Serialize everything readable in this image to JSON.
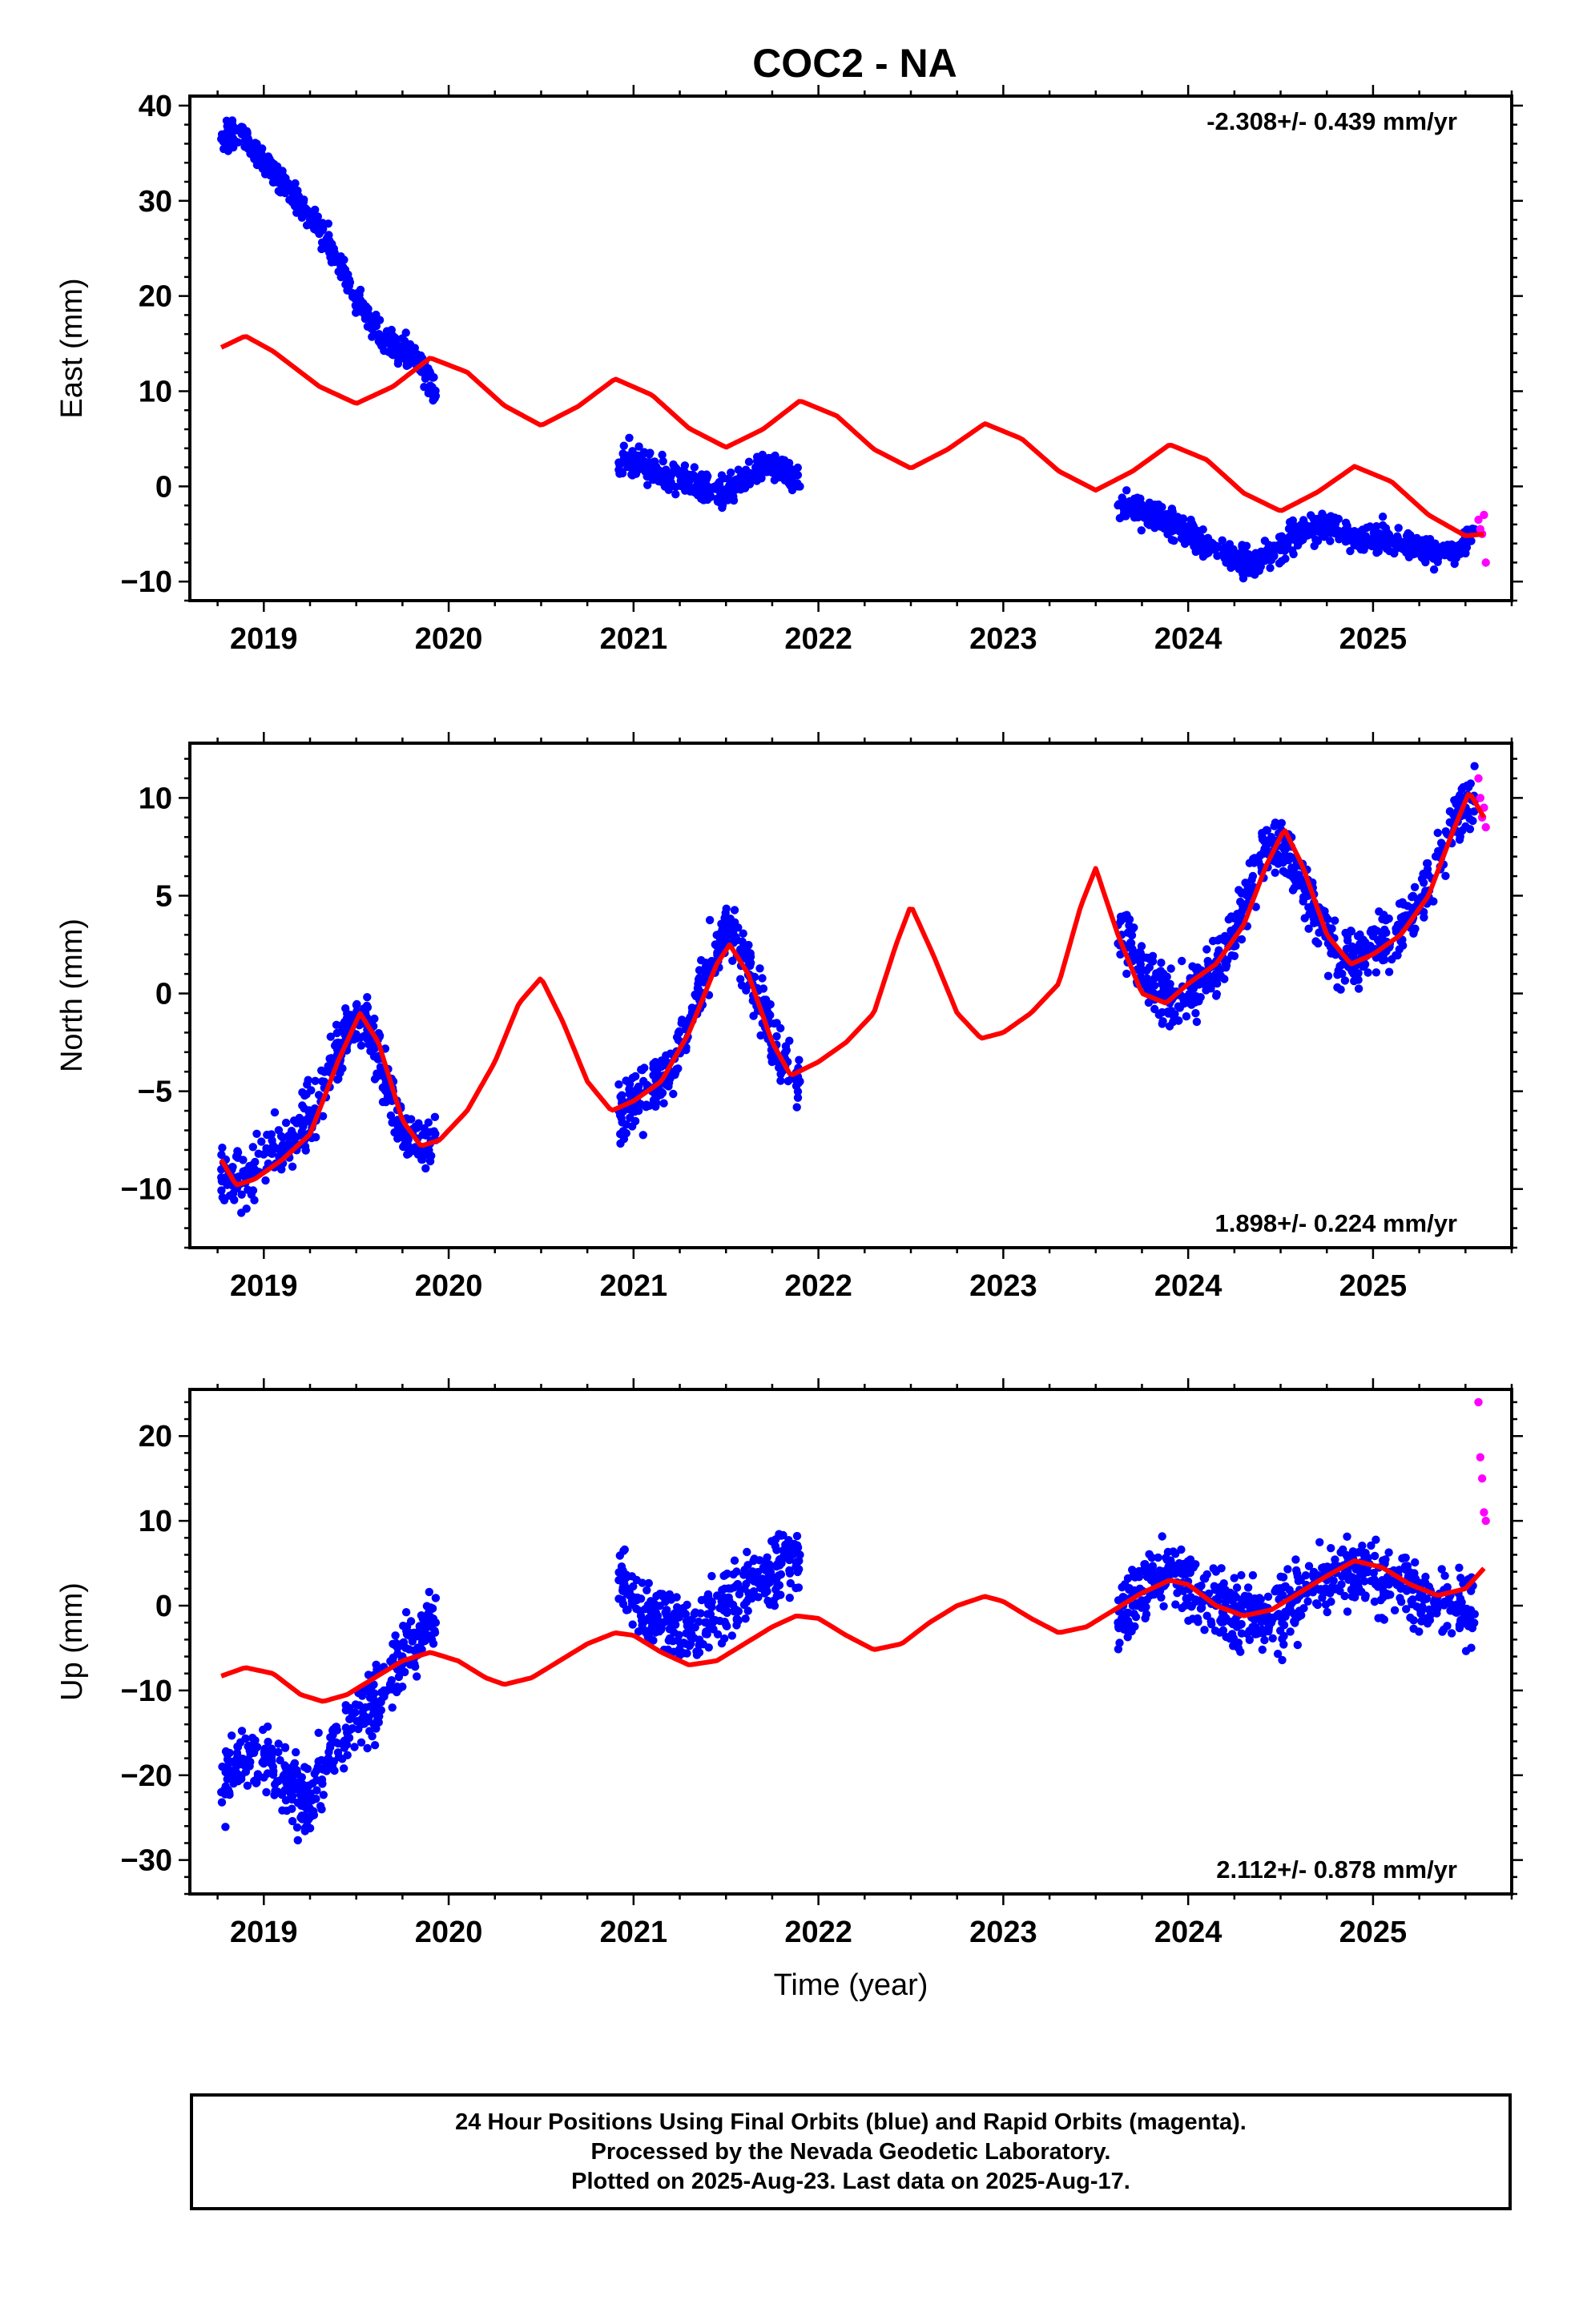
{
  "title": "COC2 - NA",
  "footer": {
    "line1": "24 Hour Positions Using Final Orbits (blue) and Rapid Orbits (magenta).",
    "line2": "Processed by the Nevada Geodetic Laboratory.",
    "line3": "Plotted on 2025-Aug-23. Last data on 2025-Aug-17."
  },
  "colors": {
    "final_orbits": "#0000ff",
    "rapid_orbits": "#ff00ff",
    "model_fit": "#ff0000",
    "axes": "#000000"
  },
  "chart_data": [
    {
      "type": "scatter",
      "panel": "east",
      "ylabel": "East (mm)",
      "xlabel": "",
      "rate_label": "-2.308+/- 0.439 mm/yr",
      "rate_position": "top-right",
      "xlim": [
        2018.6,
        2025.75
      ],
      "ylim": [
        -12,
        41
      ],
      "x_ticks": [
        2019,
        2020,
        2021,
        2022,
        2023,
        2024,
        2025
      ],
      "y_ticks": [
        -10,
        0,
        10,
        20,
        30,
        40
      ],
      "grid": false,
      "series": [
        {
          "name": "Final Orbits",
          "marker": "dot",
          "segments": [
            {
              "x": [
                2018.77,
                2018.85,
                2018.95,
                2019.05,
                2019.15,
                2019.25,
                2019.35,
                2019.45,
                2019.55,
                2019.65,
                2019.75,
                2019.85,
                2019.93
              ],
              "y": [
                36.5,
                37.5,
                35.5,
                33.0,
                31.0,
                28.0,
                25.5,
                21.5,
                18.0,
                15.5,
                14.5,
                13.0,
                9.5
              ]
            },
            {
              "x": [
                2020.92,
                2021.0,
                2021.1,
                2021.2,
                2021.3,
                2021.4,
                2021.5,
                2021.6,
                2021.7,
                2021.8,
                2021.9
              ],
              "y": [
                2.5,
                3.0,
                2.0,
                1.0,
                0.5,
                0.0,
                -0.5,
                0.5,
                2.0,
                2.0,
                0.0
              ]
            },
            {
              "x": [
                2023.62,
                2023.7,
                2023.8,
                2023.9,
                2024.05,
                2024.15,
                2024.25,
                2024.35,
                2024.45,
                2024.55,
                2024.65,
                2024.75,
                2024.85,
                2024.95,
                2025.05,
                2025.15,
                2025.25,
                2025.35,
                2025.45,
                2025.55
              ],
              "y": [
                -2.0,
                -2.5,
                -3.0,
                -4.0,
                -5.5,
                -6.5,
                -7.5,
                -8.0,
                -7.0,
                -5.5,
                -4.5,
                -4.0,
                -5.0,
                -5.5,
                -5.5,
                -6.0,
                -6.5,
                -7.0,
                -7.0,
                -4.5
              ]
            }
          ]
        },
        {
          "name": "Rapid Orbits",
          "marker": "dot",
          "x": [
            2025.57,
            2025.58,
            2025.59,
            2025.6,
            2025.61
          ],
          "y": [
            -3.5,
            -4.5,
            -5.0,
            -3.0,
            -8.0
          ]
        },
        {
          "name": "Model",
          "type": "line",
          "x": [
            2018.77,
            2018.9,
            2019.05,
            2019.3,
            2019.5,
            2019.7,
            2019.9,
            2020.1,
            2020.3,
            2020.5,
            2020.7,
            2020.9,
            2021.1,
            2021.3,
            2021.5,
            2021.7,
            2021.9,
            2022.1,
            2022.3,
            2022.5,
            2022.7,
            2022.9,
            2023.1,
            2023.3,
            2023.5,
            2023.7,
            2023.9,
            2024.1,
            2024.3,
            2024.5,
            2024.7,
            2024.9,
            2025.1,
            2025.3,
            2025.5,
            2025.6
          ],
          "y": [
            14.6,
            15.8,
            14.2,
            10.5,
            8.7,
            10.5,
            13.5,
            12.0,
            8.5,
            6.4,
            8.4,
            11.3,
            9.6,
            6.1,
            4.1,
            6.0,
            9.0,
            7.4,
            3.9,
            1.9,
            3.9,
            6.6,
            5.0,
            1.6,
            -0.4,
            1.6,
            4.4,
            2.8,
            -0.7,
            -2.6,
            -0.6,
            2.1,
            0.5,
            -3.0,
            -5.2,
            -5.0
          ]
        }
      ]
    },
    {
      "type": "scatter",
      "panel": "north",
      "ylabel": "North (mm)",
      "xlabel": "",
      "rate_label": "1.898+/- 0.224 mm/yr",
      "rate_position": "bottom-right",
      "xlim": [
        2018.6,
        2025.75
      ],
      "ylim": [
        -13,
        12.8
      ],
      "x_ticks": [
        2019,
        2020,
        2021,
        2022,
        2023,
        2024,
        2025
      ],
      "y_ticks": [
        -10,
        -5,
        0,
        5,
        10
      ],
      "grid": false,
      "series": [
        {
          "name": "Final Orbits",
          "marker": "dot",
          "segments": [
            {
              "x": [
                2018.77,
                2018.85,
                2018.95,
                2019.05,
                2019.15,
                2019.25,
                2019.35,
                2019.45,
                2019.55,
                2019.65,
                2019.75,
                2019.85,
                2019.93
              ],
              "y": [
                -9.0,
                -9.5,
                -9.0,
                -8.0,
                -7.5,
                -6.5,
                -4.0,
                -2.0,
                -1.0,
                -4.0,
                -7.0,
                -8.0,
                -7.5
              ]
            },
            {
              "x": [
                2020.92,
                2021.0,
                2021.1,
                2021.2,
                2021.3,
                2021.4,
                2021.5,
                2021.6,
                2021.7,
                2021.8,
                2021.9
              ],
              "y": [
                -6.0,
                -5.5,
                -5.0,
                -4.0,
                -1.5,
                1.5,
                3.0,
                2.0,
                -1.0,
                -3.5,
                -4.5
              ]
            },
            {
              "x": [
                2023.62,
                2023.7,
                2023.8,
                2023.9,
                2024.05,
                2024.15,
                2024.25,
                2024.35,
                2024.45,
                2024.55,
                2024.65,
                2024.75,
                2024.85,
                2024.95,
                2025.05,
                2025.15,
                2025.25,
                2025.35,
                2025.45,
                2025.55
              ],
              "y": [
                3.5,
                2.0,
                0.5,
                -0.5,
                0.5,
                1.0,
                3.0,
                6.0,
                8.0,
                7.0,
                5.0,
                3.0,
                1.5,
                2.0,
                2.5,
                3.5,
                4.5,
                7.0,
                9.0,
                10.0
              ]
            }
          ]
        },
        {
          "name": "Rapid Orbits",
          "marker": "dot",
          "x": [
            2025.57,
            2025.58,
            2025.59,
            2025.6,
            2025.61
          ],
          "y": [
            11.0,
            10.0,
            9.0,
            9.5,
            8.5
          ]
        },
        {
          "name": "Model",
          "type": "line",
          "x": [
            2018.77,
            2018.85,
            2018.95,
            2019.1,
            2019.25,
            2019.4,
            2019.52,
            2019.62,
            2019.75,
            2019.85,
            2019.95,
            2020.1,
            2020.25,
            2020.38,
            2020.5,
            2020.62,
            2020.75,
            2020.88,
            2021.0,
            2021.15,
            2021.3,
            2021.45,
            2021.52,
            2021.62,
            2021.75,
            2021.85,
            2022.0,
            2022.15,
            2022.3,
            2022.42,
            2022.5,
            2022.62,
            2022.75,
            2022.88,
            2023.0,
            2023.15,
            2023.3,
            2023.42,
            2023.5,
            2023.62,
            2023.75,
            2023.88,
            2024.0,
            2024.15,
            2024.3,
            2024.42,
            2024.52,
            2024.62,
            2024.75,
            2024.88,
            2025.0,
            2025.15,
            2025.3,
            2025.42,
            2025.52,
            2025.6
          ],
          "y": [
            -8.5,
            -9.8,
            -9.5,
            -8.5,
            -7.2,
            -3.5,
            -1.0,
            -2.5,
            -6.5,
            -7.8,
            -7.5,
            -6.0,
            -3.5,
            -0.5,
            0.8,
            -1.5,
            -4.5,
            -6.0,
            -5.5,
            -4.5,
            -2.0,
            1.5,
            2.5,
            1.0,
            -2.5,
            -4.2,
            -3.5,
            -2.5,
            -1.0,
            2.5,
            4.5,
            2.0,
            -1.0,
            -2.3,
            -2.0,
            -1.0,
            0.5,
            4.5,
            6.4,
            3.0,
            0.0,
            -0.5,
            0.5,
            1.5,
            3.5,
            6.5,
            8.4,
            6.5,
            3.0,
            1.5,
            2.0,
            3.0,
            5.0,
            8.0,
            10.3,
            9.0
          ]
        }
      ]
    },
    {
      "type": "scatter",
      "panel": "up",
      "ylabel": "Up (mm)",
      "xlabel": "Time (year)",
      "rate_label": "2.112+/- 0.878 mm/yr",
      "rate_position": "bottom-right",
      "xlim": [
        2018.6,
        2025.75
      ],
      "ylim": [
        -34,
        25.5
      ],
      "x_ticks": [
        2019,
        2020,
        2021,
        2022,
        2023,
        2024,
        2025
      ],
      "y_ticks": [
        -30,
        -20,
        -10,
        0,
        10,
        20
      ],
      "grid": false,
      "series": [
        {
          "name": "Final Orbits",
          "marker": "dot",
          "segments": [
            {
              "x": [
                2018.77,
                2018.85,
                2018.95,
                2019.05,
                2019.15,
                2019.25,
                2019.35,
                2019.45,
                2019.55,
                2019.65,
                2019.75,
                2019.85,
                2019.93
              ],
              "y": [
                -22.0,
                -19.0,
                -17.0,
                -19.0,
                -21.0,
                -23.0,
                -18.0,
                -15.0,
                -12.0,
                -10.0,
                -6.0,
                -3.0,
                -2.0
              ]
            },
            {
              "x": [
                2020.92,
                2021.0,
                2021.1,
                2021.2,
                2021.3,
                2021.4,
                2021.5,
                2021.6,
                2021.7,
                2021.8,
                2021.9
              ],
              "y": [
                3.0,
                1.0,
                -1.0,
                -2.0,
                -3.0,
                -1.0,
                0.0,
                2.0,
                3.0,
                5.0,
                6.0
              ]
            },
            {
              "x": [
                2023.62,
                2023.7,
                2023.8,
                2023.9,
                2024.05,
                2024.15,
                2024.25,
                2024.35,
                2024.45,
                2024.55,
                2024.65,
                2024.75,
                2024.85,
                2024.95,
                2025.05,
                2025.15,
                2025.25,
                2025.35,
                2025.45,
                2025.55
              ],
              "y": [
                -2.0,
                0.0,
                3.0,
                4.0,
                2.0,
                0.0,
                0.0,
                -1.0,
                -2.0,
                0.0,
                2.0,
                3.0,
                4.0,
                4.0,
                3.0,
                2.0,
                1.0,
                0.0,
                0.0,
                -1.0
              ]
            }
          ]
        },
        {
          "name": "Rapid Orbits",
          "marker": "dot",
          "x": [
            2025.57,
            2025.58,
            2025.59,
            2025.6,
            2025.61
          ],
          "y": [
            24.0,
            17.5,
            15.0,
            11.0,
            10.0
          ]
        },
        {
          "name": "Model",
          "type": "line",
          "x": [
            2018.77,
            2018.9,
            2019.05,
            2019.2,
            2019.32,
            2019.45,
            2019.6,
            2019.75,
            2019.9,
            2020.05,
            2020.2,
            2020.3,
            2020.45,
            2020.6,
            2020.75,
            2020.9,
            2021.0,
            2021.15,
            2021.3,
            2021.45,
            2021.6,
            2021.75,
            2021.88,
            2022.0,
            2022.15,
            2022.3,
            2022.45,
            2022.6,
            2022.75,
            2022.9,
            2023.0,
            2023.15,
            2023.3,
            2023.45,
            2023.6,
            2023.75,
            2023.9,
            2024.0,
            2024.15,
            2024.3,
            2024.45,
            2024.6,
            2024.75,
            2024.9,
            2025.05,
            2025.2,
            2025.35,
            2025.5,
            2025.6
          ],
          "y": [
            -8.3,
            -7.3,
            -8.0,
            -10.5,
            -11.3,
            -10.5,
            -8.5,
            -6.5,
            -5.5,
            -6.5,
            -8.5,
            -9.3,
            -8.5,
            -6.5,
            -4.5,
            -3.2,
            -3.5,
            -5.5,
            -7.0,
            -6.5,
            -4.5,
            -2.5,
            -1.2,
            -1.5,
            -3.5,
            -5.2,
            -4.5,
            -2.0,
            0.0,
            1.1,
            0.5,
            -1.5,
            -3.2,
            -2.5,
            -0.5,
            1.5,
            3.0,
            2.5,
            0.0,
            -1.2,
            -0.5,
            1.5,
            3.5,
            5.3,
            4.5,
            2.5,
            1.2,
            2.0,
            4.4
          ]
        }
      ]
    }
  ]
}
